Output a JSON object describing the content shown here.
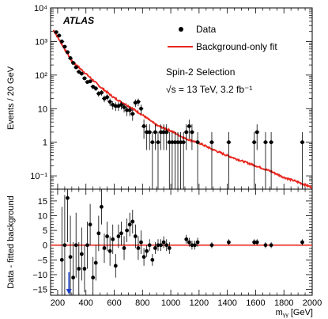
{
  "chart_data": [
    {
      "type": "scatter",
      "panel": "main",
      "experiment": "ATLAS",
      "annotations": [
        "Spin-2 Selection",
        "√s = 13 TeV, 3.2 fb⁻¹"
      ],
      "xlabel": "m_γγ [GeV]",
      "ylabel": "Events / 20 GeV",
      "xlim": [
        150,
        2000
      ],
      "ylim": [
        0.04,
        10000
      ],
      "yscale": "log",
      "x_ticks": [
        200,
        400,
        600,
        800,
        1000,
        1200,
        1400,
        1600,
        1800,
        2000
      ],
      "x_tick_labels": [
        "200",
        "400",
        "600",
        "800",
        "1000",
        "1200",
        "1400",
        "1600",
        "1800",
        "2000"
      ],
      "y_ticks": [
        0.1,
        1,
        10,
        100,
        1000,
        10000
      ],
      "y_tick_labels": [
        "10⁻¹",
        "1",
        "10",
        "10²",
        "10³",
        "10⁴"
      ],
      "legend": {
        "position": "top-right",
        "entries": [
          "Data",
          "Background-only fit"
        ]
      },
      "series": [
        {
          "name": "Data",
          "style": "markers-with-errors",
          "color": "#000000",
          "x": [
            190,
            210,
            230,
            250,
            270,
            290,
            310,
            330,
            350,
            370,
            390,
            410,
            430,
            450,
            470,
            490,
            510,
            530,
            550,
            570,
            590,
            610,
            630,
            650,
            670,
            690,
            710,
            730,
            750,
            770,
            790,
            810,
            830,
            850,
            870,
            890,
            910,
            930,
            950,
            970,
            990,
            1010,
            1030,
            1050,
            1070,
            1090,
            1110,
            1130,
            1150,
            1190,
            1290,
            1410,
            1590,
            1610,
            1670,
            1710,
            1930
          ],
          "y": [
            1900,
            1500,
            1000,
            700,
            480,
            320,
            230,
            170,
            125,
            110,
            80,
            62,
            65,
            45,
            40,
            28,
            30,
            20,
            22,
            16,
            13,
            12,
            12,
            13,
            11,
            9,
            9,
            7,
            15,
            16,
            10,
            3,
            2,
            2,
            1,
            2,
            1,
            2,
            2,
            2,
            1,
            1,
            1,
            1,
            1,
            1,
            2,
            3,
            2,
            1,
            1,
            1,
            1,
            2,
            1,
            1,
            1
          ]
        },
        {
          "name": "Background-only fit",
          "style": "line",
          "color": "#e8271e",
          "function": "exponential",
          "x": [
            170,
            300,
            400,
            500,
            600,
            700,
            800,
            900,
            1000,
            1100,
            1200,
            1300,
            1400,
            1500,
            1600,
            1700,
            1800,
            1900,
            2000
          ],
          "y": [
            2200,
            260,
            110,
            45,
            21,
            12,
            6.5,
            3.2,
            2.2,
            1.3,
            0.95,
            0.6,
            0.4,
            0.28,
            0.2,
            0.14,
            0.09,
            0.065,
            0.045
          ]
        }
      ]
    },
    {
      "type": "scatter",
      "panel": "ratio",
      "xlabel": "m_γγ [GeV]",
      "ylabel": "Data - fitted background",
      "xlim": [
        150,
        2000
      ],
      "ylim": [
        -17,
        19
      ],
      "x_ticks": [
        200,
        400,
        600,
        800,
        1000,
        1200,
        1400,
        1600,
        1800,
        2000
      ],
      "y_ticks": [
        -15,
        -10,
        -5,
        0,
        5,
        10,
        15
      ],
      "y_tick_labels": [
        "−15",
        "−10",
        "−5",
        "0",
        "5",
        "10",
        "15"
      ],
      "reference_line": {
        "y": 0,
        "color": "#e8271e"
      },
      "out_of_range_arrow": {
        "x": 280,
        "direction": "down",
        "color": "#1b3fc9"
      },
      "series": [
        {
          "name": "Data",
          "style": "markers-with-errors",
          "color": "#000000",
          "x": [
            230,
            250,
            270,
            290,
            310,
            330,
            350,
            370,
            390,
            410,
            430,
            450,
            470,
            490,
            510,
            530,
            550,
            570,
            590,
            610,
            630,
            650,
            670,
            690,
            710,
            730,
            750,
            770,
            790,
            810,
            830,
            850,
            870,
            890,
            910,
            930,
            950,
            970,
            990,
            1110,
            1130,
            1150,
            1170,
            1190,
            1290,
            1410,
            1590,
            1610,
            1670,
            1710,
            1930
          ],
          "x_err": 10,
          "y": [
            -5,
            0,
            16,
            -4,
            -11,
            0,
            -8,
            -3,
            -8,
            0,
            7,
            -11,
            -6,
            4,
            13,
            -1,
            3,
            -2,
            2,
            -7,
            3,
            4,
            -1,
            5,
            7,
            8,
            3,
            -1,
            1,
            -4,
            -2,
            0,
            -5,
            -1,
            0,
            0,
            1,
            0,
            -1,
            2,
            1,
            0,
            0,
            1,
            0,
            1,
            1,
            1,
            0,
            0,
            1
          ],
          "y_err": [
            18,
            17,
            15,
            14,
            12,
            11,
            9,
            9,
            8,
            8,
            7,
            7,
            6,
            6,
            6,
            5,
            5,
            5,
            5,
            4,
            4,
            4,
            4,
            4,
            4,
            4,
            4,
            4,
            4,
            3,
            2,
            2,
            2,
            2,
            2,
            2,
            2,
            2,
            2,
            1.5,
            1.5,
            1.5,
            1.5,
            1.5,
            1,
            1,
            1,
            1,
            1,
            1,
            1
          ]
        }
      ]
    }
  ]
}
